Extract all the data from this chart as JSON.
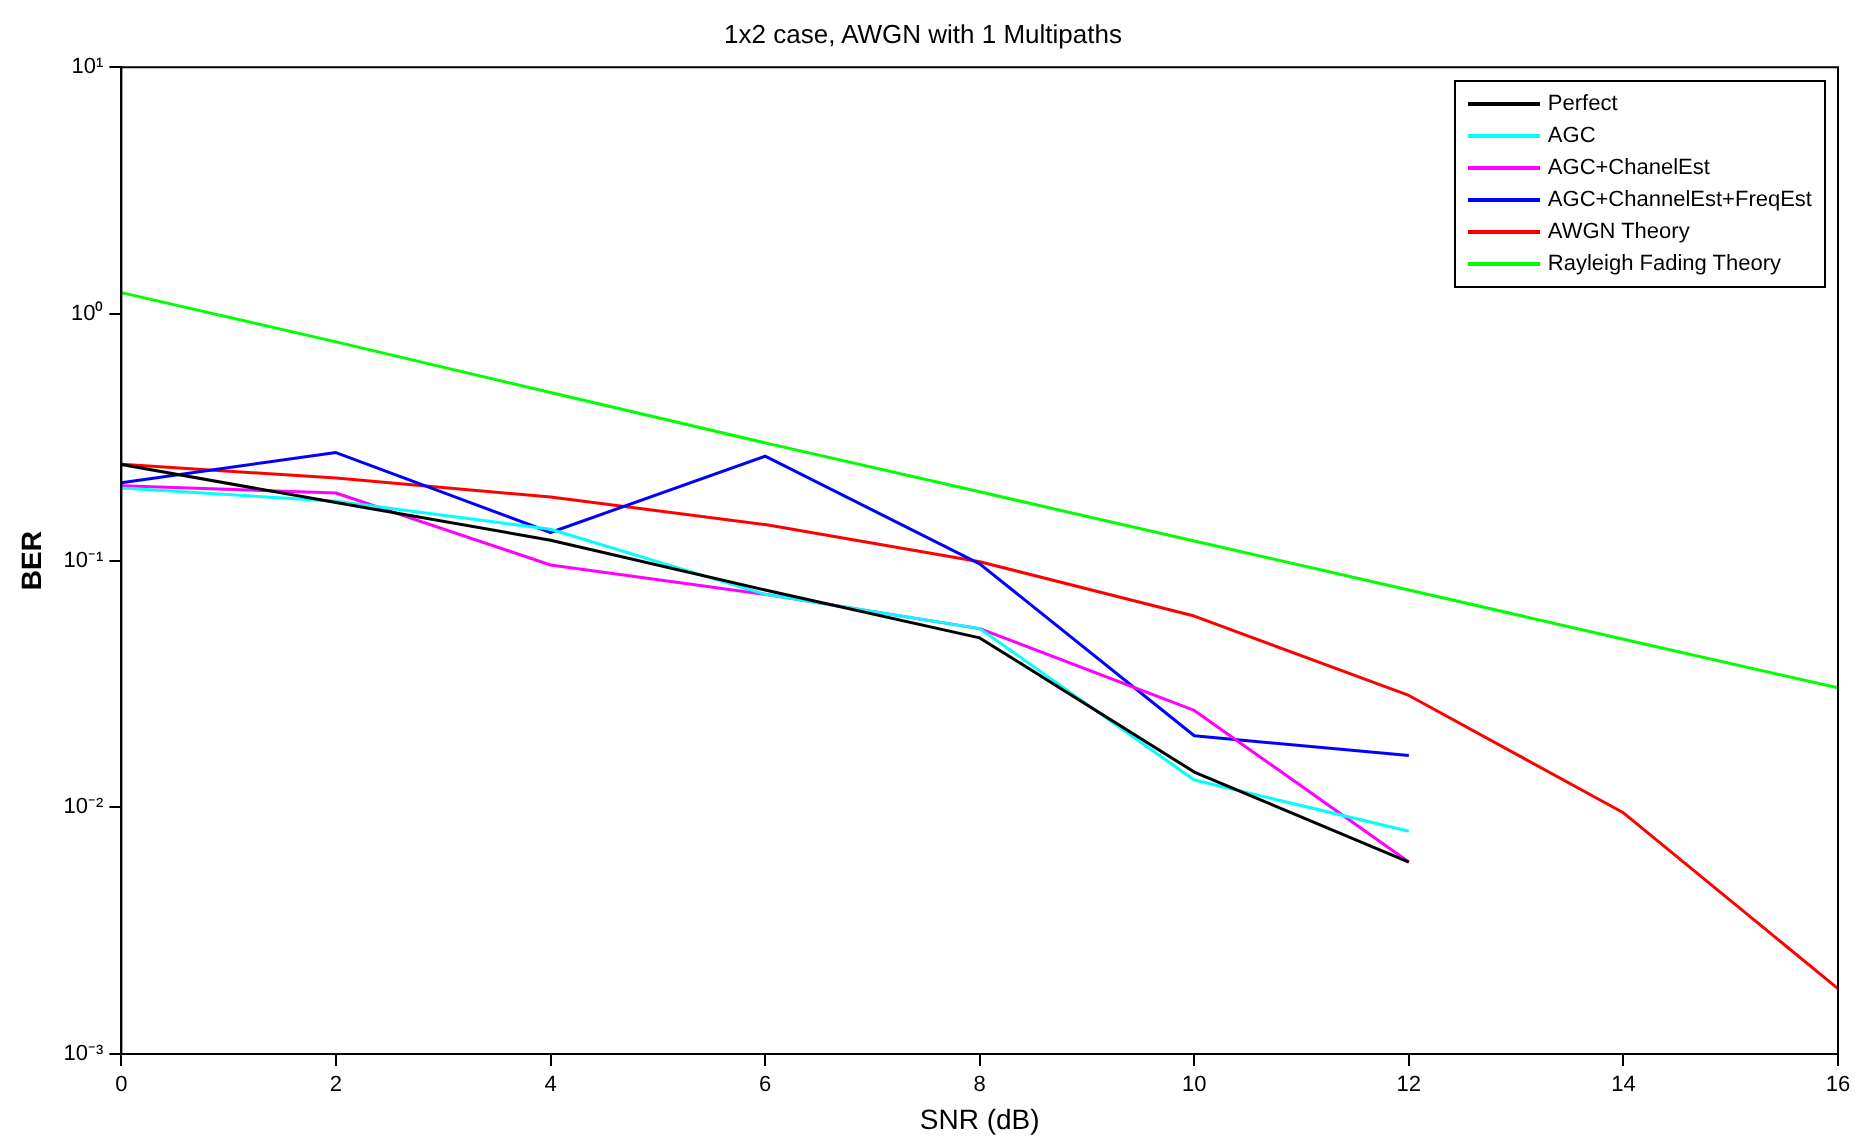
{
  "chart_data": {
    "type": "line",
    "title": "1x2 case, AWGN with 1 Multipaths",
    "xlabel": "SNR (dB)",
    "ylabel": "BER",
    "x": [
      0,
      2,
      4,
      6,
      8,
      10,
      12,
      14,
      16
    ],
    "series": [
      {
        "name": "Perfect",
        "color": "#000000",
        "values": [
          0.245,
          0.172,
          0.121,
          0.076,
          0.0486,
          0.0139,
          0.006,
          null,
          null
        ]
      },
      {
        "name": "AGC",
        "color": "#00ffff",
        "values": [
          0.197,
          0.174,
          0.134,
          0.073,
          0.053,
          0.0129,
          0.008,
          null,
          null
        ]
      },
      {
        "name": "AGC+ChanelEst",
        "color": "#ff00ff",
        "values": [
          0.201,
          0.188,
          0.096,
          0.073,
          0.053,
          0.0247,
          0.006,
          null,
          null
        ]
      },
      {
        "name": "AGC+ChannelEst+FreqEst",
        "color": "#0000ff",
        "values": [
          0.207,
          0.274,
          0.13,
          0.265,
          0.097,
          0.0195,
          0.0162,
          null,
          null
        ]
      },
      {
        "name": "AWGN Theory",
        "color": "#ff0000",
        "values": [
          0.246,
          0.216,
          0.181,
          0.14,
          0.099,
          0.0596,
          0.0284,
          0.0095,
          0.00184
        ]
      },
      {
        "name": "Rayleigh Fading Theory",
        "color": "#00ff00",
        "values": [
          1.22,
          0.77,
          0.48,
          0.3,
          0.19,
          0.12,
          0.076,
          0.048,
          0.0305
        ]
      }
    ],
    "log": "y",
    "xlim": [
      0,
      16
    ],
    "xticks": [
      0,
      2,
      4,
      6,
      8,
      10,
      12,
      14,
      16
    ],
    "ylim": [
      0.001,
      10
    ],
    "yticks": [
      {
        "value": 0.001,
        "label": "10⁻³"
      },
      {
        "value": 0.01,
        "label": "10⁻²"
      },
      {
        "value": 0.1,
        "label": "10⁻¹"
      },
      {
        "value": 1,
        "label": "10⁰"
      },
      {
        "value": 10,
        "label": "10¹"
      }
    ],
    "grid": false,
    "legend": "top right",
    "marker": "none",
    "line_style": "solid"
  }
}
